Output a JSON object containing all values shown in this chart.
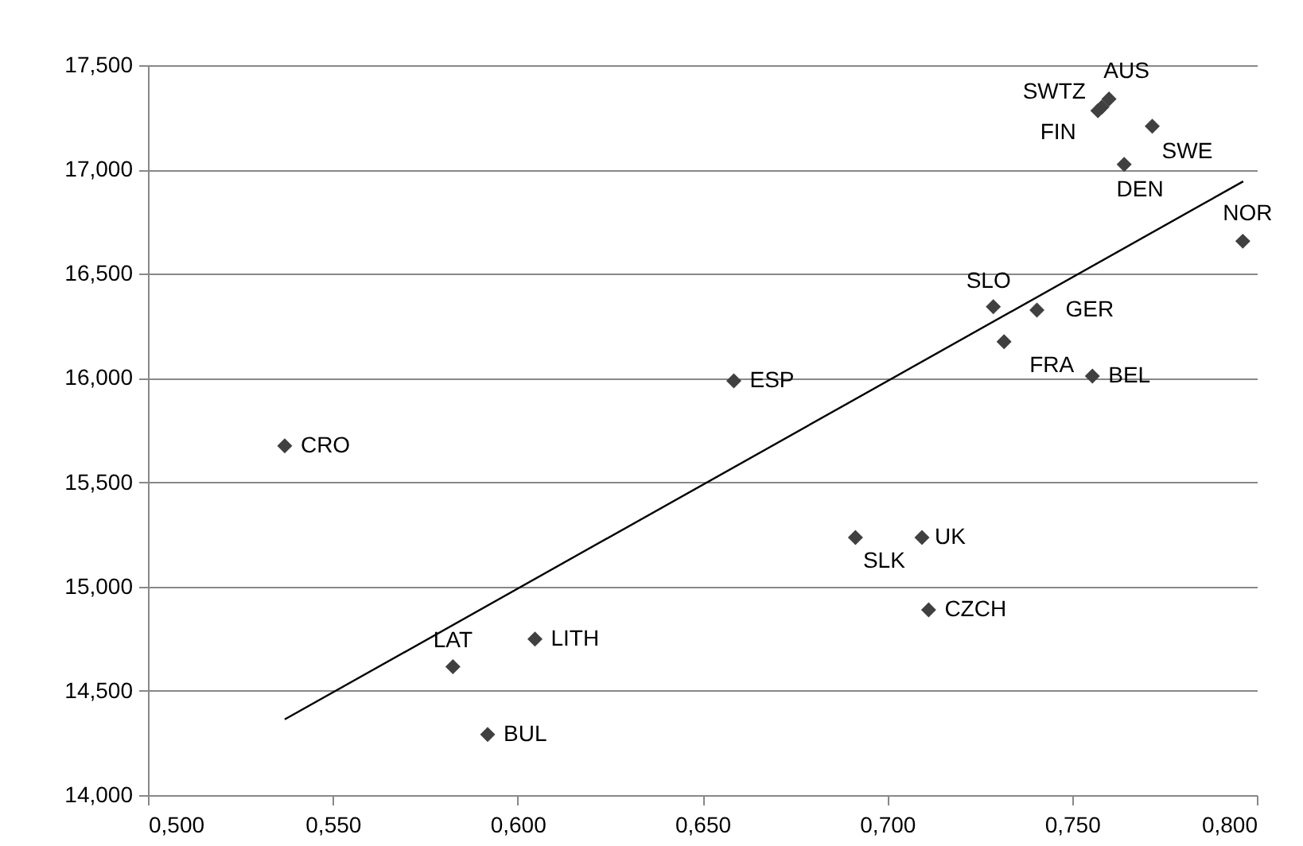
{
  "chart_data": {
    "type": "scatter",
    "xlim": [
      0.5,
      0.8
    ],
    "xticks": [
      {
        "value": 0.5,
        "label": "0,500"
      },
      {
        "value": 0.55,
        "label": "0,550"
      },
      {
        "value": 0.6,
        "label": "0,600"
      },
      {
        "value": 0.65,
        "label": "0,650"
      },
      {
        "value": 0.7,
        "label": "0,700"
      },
      {
        "value": 0.75,
        "label": "0,750"
      },
      {
        "value": 0.8,
        "label": "0,800"
      }
    ],
    "ylim": [
      14.0,
      17.5
    ],
    "yticks": [
      {
        "value": 14.0,
        "label": "14,000"
      },
      {
        "value": 14.5,
        "label": "14,500"
      },
      {
        "value": 15.0,
        "label": "15,000"
      },
      {
        "value": 15.5,
        "label": "15,500"
      },
      {
        "value": 16.0,
        "label": "16,000"
      },
      {
        "value": 16.5,
        "label": "16,500"
      },
      {
        "value": 17.0,
        "label": "17,000"
      },
      {
        "value": 17.5,
        "label": "17,500"
      }
    ],
    "grid": "y",
    "series": [
      {
        "type": "scatter",
        "color": "#404040",
        "marker": "diamond",
        "x": [
          0.537,
          0.5825,
          0.6047,
          0.5919,
          0.6585,
          0.6914,
          0.7094,
          0.7112,
          0.7287,
          0.7405,
          0.7316,
          0.7555,
          0.7962,
          0.7641,
          0.7717,
          0.7581,
          0.76,
          0.757
        ],
        "values": [
          15.675,
          14.616,
          14.748,
          14.291,
          15.986,
          15.235,
          15.235,
          14.888,
          16.342,
          16.326,
          16.174,
          16.009,
          16.656,
          17.024,
          17.207,
          17.3,
          17.338,
          17.282
        ],
        "value_labels": [
          "CRO",
          "LAT",
          "LITH",
          "BUL",
          "ESP",
          "SLK",
          "UK",
          "CZCH",
          "SLO",
          "GER",
          "FRA",
          "BEL",
          "NOR",
          "DEN",
          "SWE",
          "SWTZ",
          "AUS",
          "FIN"
        ]
      },
      {
        "type": "line",
        "color": "#000000",
        "line_style": "solid",
        "marker": "none",
        "x": [
          0.537,
          0.7963
        ],
        "values": [
          14.363,
          16.943
        ]
      }
    ]
  }
}
